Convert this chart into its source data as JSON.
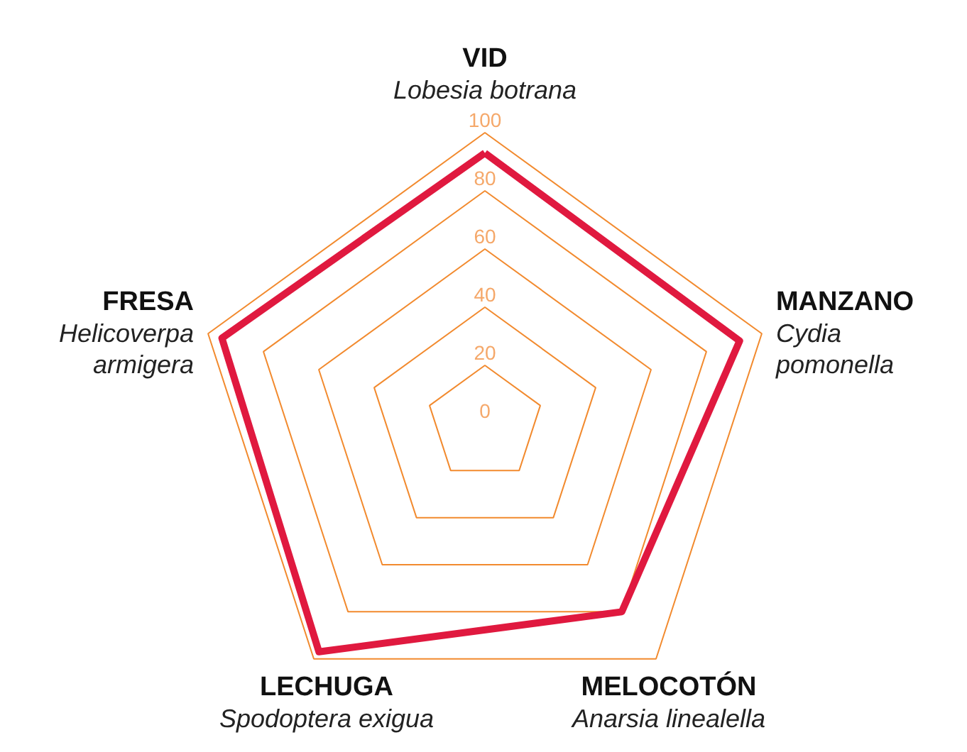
{
  "chart_data": {
    "type": "radar",
    "categories": [
      "VID\nLobesia botrana",
      "MANZANO\nCydia pomonella",
      "MELOCOTÓN\nAnarsia linealella",
      "LECHUGA\nSpodoptera exigua",
      "FRESA\nHelicoverpa armigera"
    ],
    "series": [
      {
        "color": "#e0193f",
        "values": [
          93,
          92,
          80,
          97,
          95
        ]
      }
    ],
    "ylim": [
      0,
      100
    ],
    "yticks": [
      0,
      20,
      40,
      60,
      80,
      100
    ],
    "grid": true,
    "line_style": "solid",
    "marker": "none"
  }
}
